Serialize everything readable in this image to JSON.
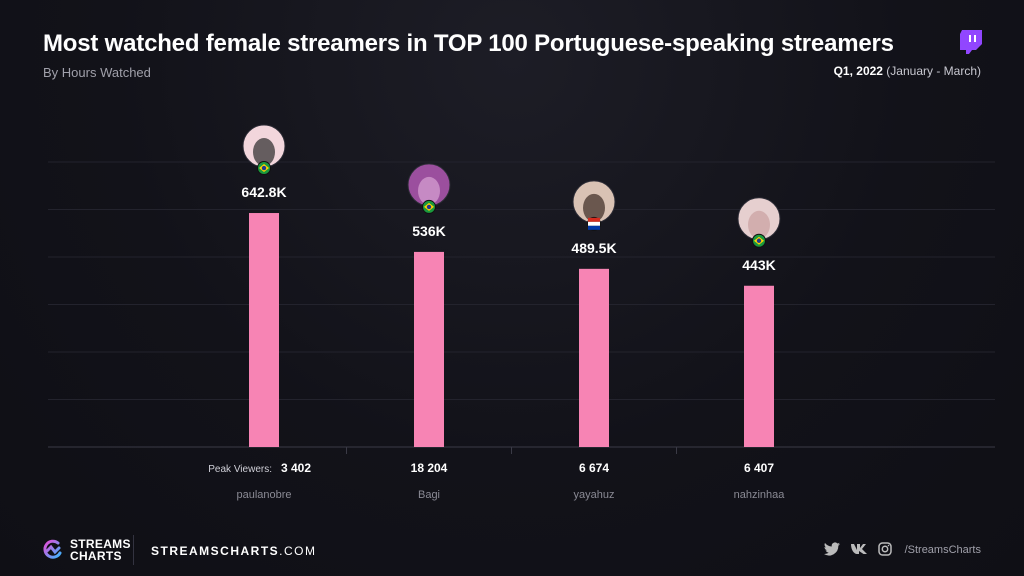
{
  "header": {
    "title": "Most watched female streamers in TOP 100 Portuguese-speaking streamers",
    "subtitle": "By Hours Watched",
    "period_bold": "Q1, 2022",
    "period_rest": " (January - March)",
    "platform_icon": "twitch-icon"
  },
  "chart_data": {
    "type": "bar",
    "title": "Most watched female streamers in TOP 100 Portuguese-speaking streamers",
    "subtitle": "By Hours Watched",
    "categories": [
      "paulanobre",
      "Bagi",
      "yayahuz",
      "nahzinhaa"
    ],
    "values": [
      642800,
      536000,
      489500,
      443000
    ],
    "value_labels": [
      "642.8K",
      "536K",
      "489.5K",
      "443K"
    ],
    "peak_viewers_label": "Peak Viewers:",
    "peak_viewers": [
      "3 402",
      "18 204",
      "6 674",
      "6 407"
    ],
    "flags": [
      "brazil",
      "brazil",
      "paraguay",
      "brazil"
    ],
    "ylim": [
      0,
      783000
    ],
    "grid": true,
    "bar_color": "#f784b4"
  },
  "footer": {
    "logo_line1": "STREAMS",
    "logo_line2": "CHARTS",
    "site_bold": "STREAMSCHARTS",
    "site_rest": ".COM",
    "social_icons": [
      "twitter-icon",
      "vk-icon",
      "instagram-icon"
    ],
    "handle": "/StreamsCharts"
  }
}
